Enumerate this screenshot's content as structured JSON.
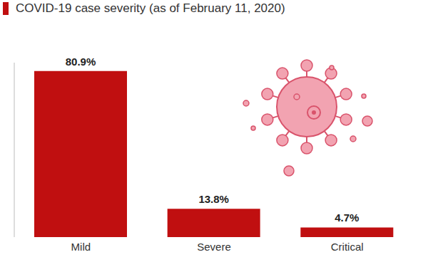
{
  "chart_data": {
    "type": "bar",
    "title": "COVID-19 case severity (as of February 11, 2020)",
    "categories": [
      "Mild",
      "Severe",
      "Critical"
    ],
    "values": [
      80.9,
      13.8,
      4.7
    ],
    "value_labels": [
      "80.9%",
      "13.8%",
      "4.7%"
    ],
    "data_labels": true,
    "color": "#c00f10",
    "ylim": [
      0,
      85
    ],
    "grid": false,
    "tick_labels": "x"
  }
}
